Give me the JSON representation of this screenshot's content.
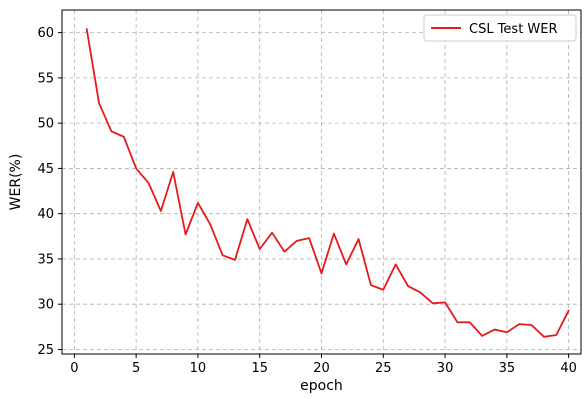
{
  "chart_data": {
    "type": "line",
    "xlabel": "epoch",
    "ylabel": "WER(%)",
    "xlim": [
      -1,
      41
    ],
    "ylim": [
      24.5,
      62.5
    ],
    "xticks": [
      0,
      5,
      10,
      15,
      20,
      25,
      30,
      35,
      40
    ],
    "yticks": [
      25,
      30,
      35,
      40,
      45,
      50,
      55,
      60
    ],
    "grid": true,
    "legend_position": "top-right",
    "series": [
      {
        "name": "CSL Test WER",
        "color": "#e41a1c",
        "x": [
          1,
          2,
          3,
          4,
          5,
          6,
          7,
          8,
          9,
          10,
          11,
          12,
          13,
          14,
          15,
          16,
          17,
          18,
          19,
          20,
          21,
          22,
          23,
          24,
          25,
          26,
          27,
          28,
          29,
          30,
          31,
          32,
          33,
          34,
          35,
          36,
          37,
          38,
          39,
          40
        ],
        "y": [
          60.4,
          52.2,
          49.1,
          48.5,
          45.0,
          43.4,
          40.3,
          44.6,
          37.7,
          41.2,
          38.8,
          35.4,
          34.9,
          39.4,
          36.1,
          37.9,
          35.8,
          37.0,
          37.3,
          33.4,
          37.8,
          34.4,
          37.2,
          32.1,
          31.6,
          34.4,
          32.0,
          31.3,
          30.1,
          30.2,
          28.0,
          28.0,
          26.5,
          27.2,
          26.9,
          27.8,
          27.7,
          26.4,
          26.6,
          29.3
        ]
      }
    ]
  }
}
